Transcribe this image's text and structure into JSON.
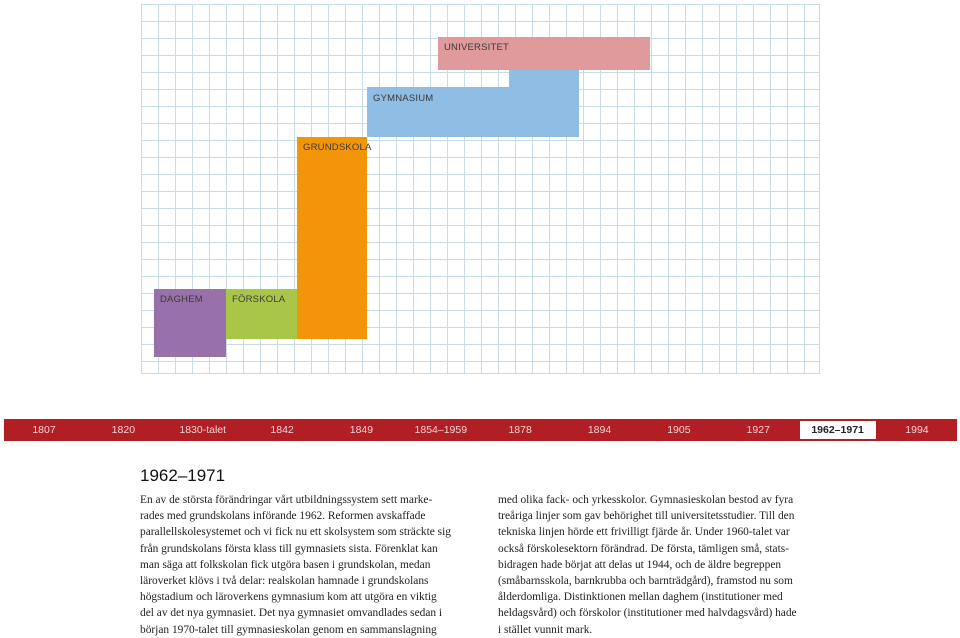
{
  "diagram": {
    "blocks": [
      {
        "id": "universitet",
        "label": "UNIVERSITET",
        "color": "#e09a9b"
      },
      {
        "id": "gymnasium",
        "label": "GYMNASIUM",
        "color": "#8fbde3"
      },
      {
        "id": "grundskola",
        "label": "GRUNDSKOLA",
        "color": "#f39509"
      },
      {
        "id": "daghem",
        "label": "DAGHEM",
        "color": "#9871ab"
      },
      {
        "id": "forskola",
        "label": "FÖRSKOLA",
        "color": "#a8c748"
      }
    ]
  },
  "timeline": {
    "years": [
      "1807",
      "1820",
      "1830-talet",
      "1842",
      "1849",
      "1854–1959",
      "1878",
      "1894",
      "1905",
      "1927",
      "1962–1971",
      "1994"
    ],
    "active": "1962–1971",
    "color": "#b11f24"
  },
  "article": {
    "heading": "1962–1971",
    "left_lines": [
      "En av de största förändringar vårt utbildningssystem sett marke-",
      "rades med grundskolans införande 1962. Reformen avskaffade",
      "parallellskolesystemet och vi fick nu ett skolsystem som sträckte sig",
      "från grundskolans första klass till gymnasiets sista. Förenklat kan",
      "man säga att folkskolan fick utgöra basen i grundskolan, medan",
      "läroverket klövs i två delar: realskolan hamnade i grundskolans",
      "högstadium och läroverkens gymnasium kom att utgöra en viktig",
      "del av det nya gymnasiet. Det nya gymnasiet omvandlades sedan i",
      "början 1970-talet till gymnasieskolan genom en sammanslagning"
    ],
    "right_lines": [
      "med olika fack- och yrkesskolor. Gymnasieskolan bestod av fyra",
      "treåriga linjer som gav behörighet till universitetsstudier. Till den",
      "tekniska linjen hörde ett frivilligt fjärde år. Under 1960-talet var",
      "också förskolesektorn förändrad. De första, tämligen små, stats-",
      "bidragen hade börjat att delas ut 1944, och de äldre begreppen",
      "(småbarnsskola, barnkrubba och barnträdgård), framstod nu som",
      "ålderdomliga. Distinktionen mellan daghem (institutioner med",
      "heldagsvård) och förskolor (institutioner med halvdagsvård) hade",
      "i stället vunnit mark."
    ]
  }
}
